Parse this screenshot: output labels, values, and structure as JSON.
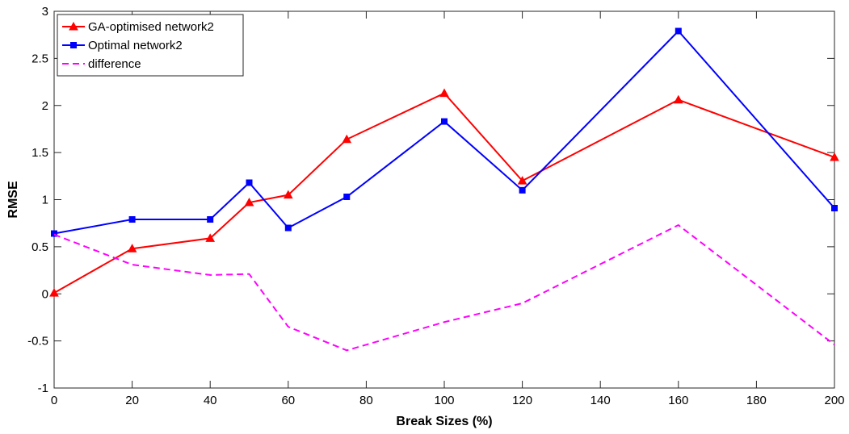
{
  "chart_data": {
    "type": "line",
    "title": "",
    "xlabel": "Break Sizes (%)",
    "ylabel": "RMSE",
    "xlim": [
      0,
      200
    ],
    "ylim": [
      -1,
      3
    ],
    "xticks": [
      0,
      20,
      40,
      60,
      80,
      100,
      120,
      140,
      160,
      180,
      200
    ],
    "yticks": [
      -1,
      -0.5,
      0,
      0.5,
      1,
      1.5,
      2,
      2.5,
      3
    ],
    "xtick_labels": [
      "0",
      "20",
      "40",
      "60",
      "80",
      "100",
      "120",
      "140",
      "160",
      "180",
      "200"
    ],
    "ytick_labels": [
      "-1",
      "-0.5",
      "0",
      "0.5",
      "1",
      "1.5",
      "2",
      "2.5",
      "3"
    ],
    "grid": false,
    "legend_position": "top-left",
    "x": [
      0,
      20,
      40,
      50,
      60,
      75,
      100,
      120,
      160,
      200
    ],
    "series": [
      {
        "name": "GA-optimised network2",
        "color": "#ff0000",
        "marker": "triangle",
        "line_style": "solid",
        "values": [
          0.01,
          0.48,
          0.59,
          0.97,
          1.05,
          1.64,
          2.13,
          1.2,
          2.06,
          1.45
        ]
      },
      {
        "name": "Optimal network2",
        "color": "#0000ff",
        "marker": "square",
        "line_style": "solid",
        "values": [
          0.64,
          0.79,
          0.79,
          1.18,
          0.7,
          1.03,
          1.83,
          1.1,
          2.79,
          0.91
        ]
      },
      {
        "name": "difference",
        "color": "#ff00ff",
        "marker": "none",
        "line_style": "dashed",
        "values": [
          0.63,
          0.31,
          0.2,
          0.21,
          -0.35,
          -0.6,
          -0.3,
          -0.1,
          0.73,
          -0.54
        ]
      }
    ]
  }
}
